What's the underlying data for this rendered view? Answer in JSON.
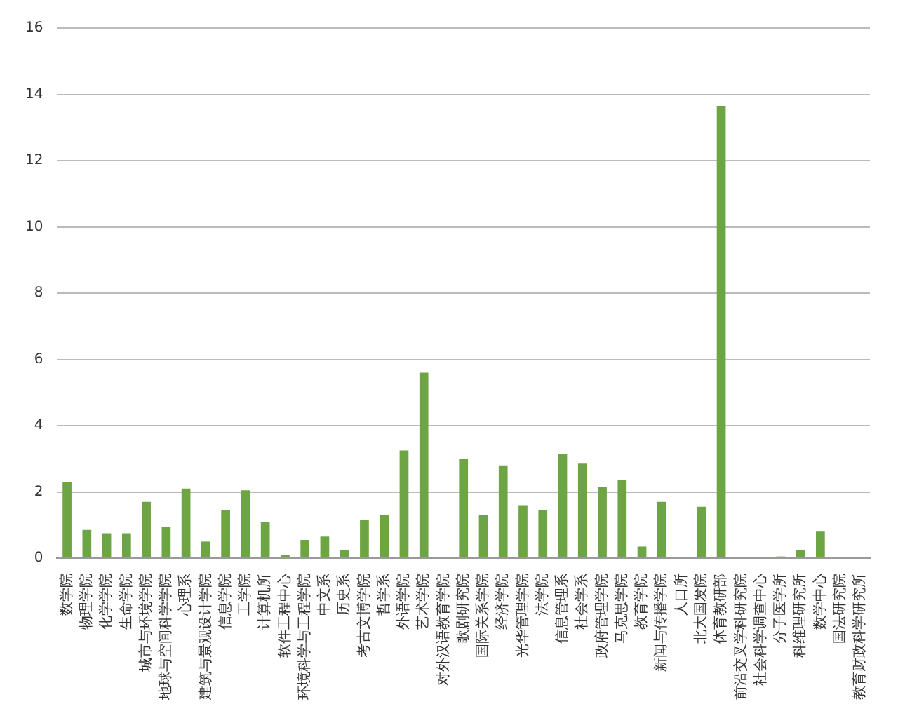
{
  "chart_data": {
    "type": "bar",
    "categories": [
      "数学院",
      "物理学院",
      "化学学院",
      "生命学院",
      "城市与环境学院",
      "地球与空间科学学院",
      "心理系",
      "建筑与景观设计学院",
      "信息学院",
      "工学院",
      "计算机所",
      "软件工程中心",
      "环境科学与工程学院",
      "中文系",
      "历史系",
      "考古文博学院",
      "哲学系",
      "外语学院",
      "艺术学院",
      "对外汉语教育学院",
      "歌剧研究院",
      "国际关系学院",
      "经济学院",
      "光华管理学院",
      "法学院",
      "信息管理系",
      "社会学系",
      "政府管理学院",
      "马克思学院",
      "教育学院",
      "新闻与传播学院",
      "人口所",
      "北大国发院",
      "体育教研部",
      "前沿交叉学科研究院",
      "社会科学调查中心",
      "分子医学所",
      "科维理研究所",
      "数学中心",
      "国法研究院",
      "教育财政科学研究所"
    ],
    "values": [
      2.3,
      0.85,
      0.75,
      0.75,
      1.7,
      0.95,
      2.1,
      0.5,
      1.45,
      2.05,
      1.1,
      0.1,
      0.55,
      0.65,
      0.25,
      1.15,
      1.3,
      3.25,
      5.6,
      0,
      3.0,
      1.3,
      2.8,
      1.6,
      1.45,
      3.15,
      2.85,
      2.15,
      2.35,
      0.35,
      1.7,
      0,
      1.55,
      13.65,
      0,
      0,
      0.05,
      0.25,
      0.8,
      0,
      0
    ],
    "color": "#6ea544",
    "ylim": [
      0,
      16
    ],
    "yticks": [
      0,
      2,
      4,
      6,
      8,
      10,
      12,
      14,
      16
    ],
    "grid": "y"
  }
}
